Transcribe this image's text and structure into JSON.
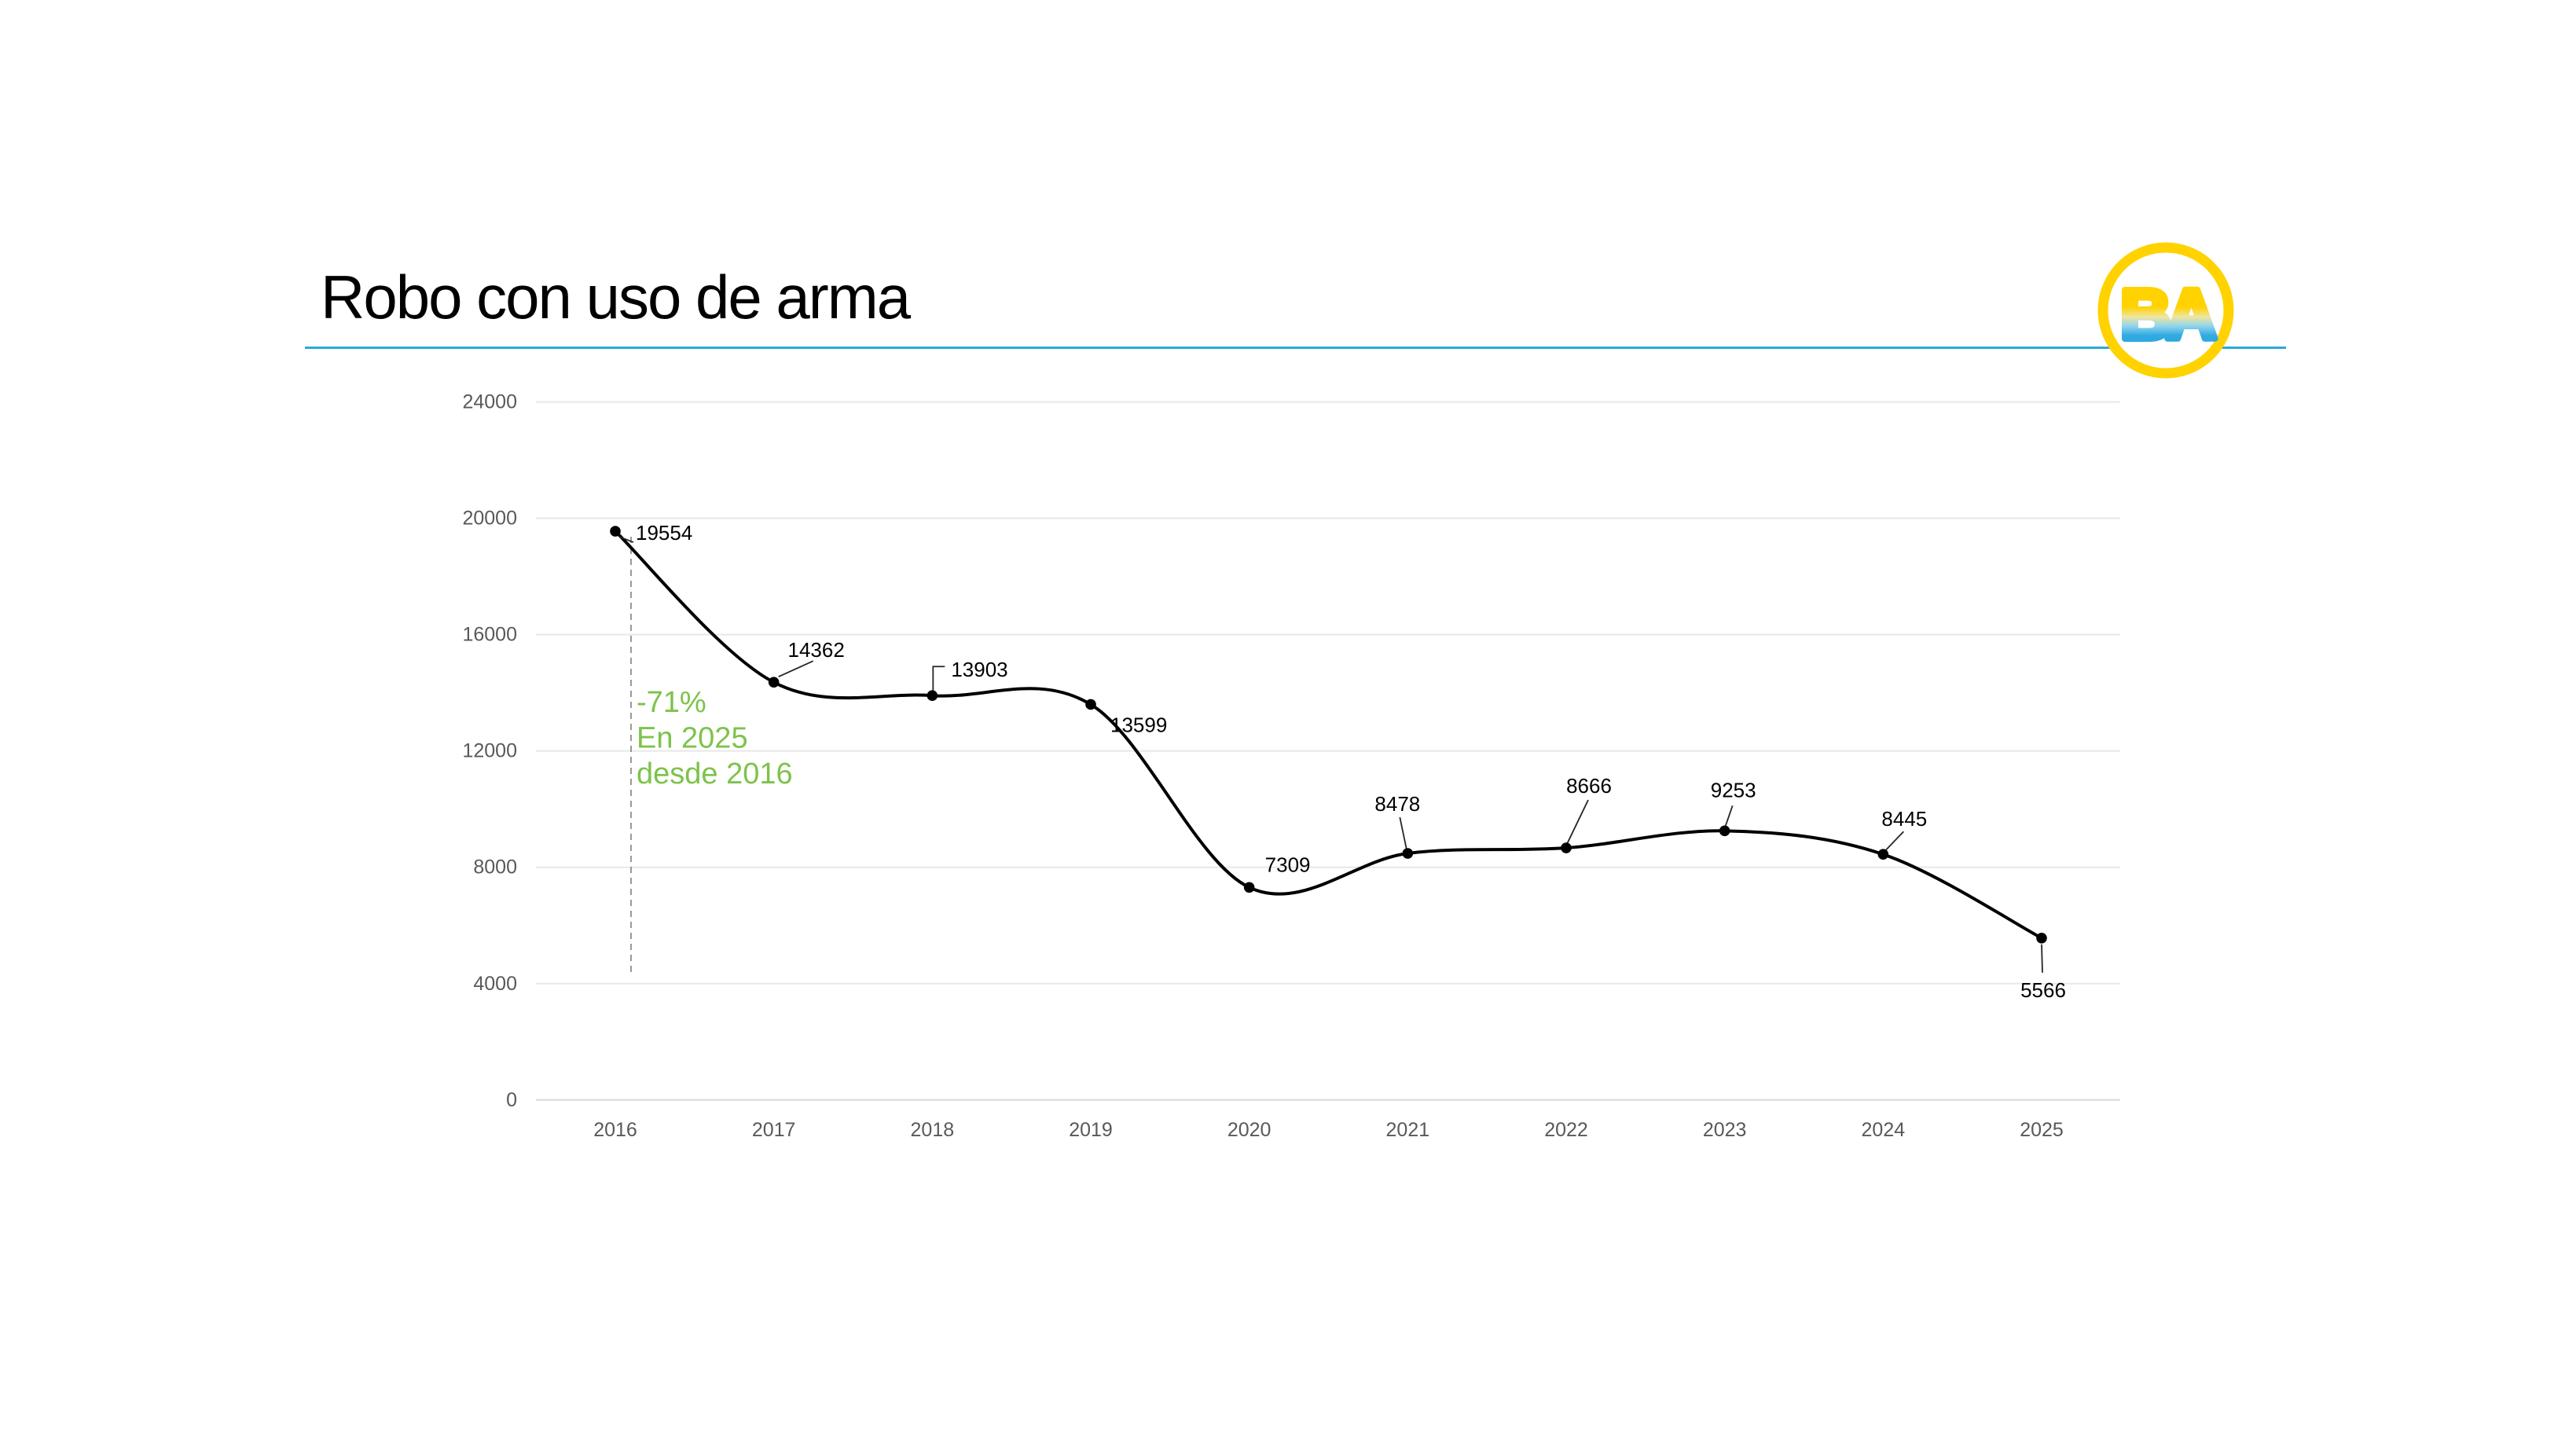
{
  "header": {
    "title": "Robo con uso de arma",
    "logo_text": "BA"
  },
  "colors": {
    "divider": "#29A9DD",
    "annotation_green": "#7DC34B",
    "logo_ring_yellow": "#FFD200",
    "logo_gradient_top": "#FFD200",
    "logo_gradient_bottom": "#29A8E0",
    "series_line": "#000000",
    "data_label": "#000000",
    "axis_text": "#595959",
    "gridline": "#E8E8E8",
    "baseline": "#D8D8D8",
    "reference_line": "#808080"
  },
  "chart_data": {
    "type": "line",
    "title": "Robo con uso de arma",
    "categories": [
      2016,
      2017,
      2018,
      2019,
      2020,
      2021,
      2022,
      2023,
      2024,
      2025
    ],
    "values": [
      19554,
      14362,
      13903,
      13599,
      7309,
      8478,
      8666,
      9253,
      8445,
      5566
    ],
    "series_name": "Robo con uso de arma",
    "xlabel": "",
    "ylabel": "",
    "ylim": [
      0,
      24000
    ],
    "yticks": [
      0,
      4000,
      8000,
      12000,
      16000,
      20000,
      24000
    ],
    "grid": "horizontal",
    "legend": "none",
    "smooth": true,
    "marker": "circle",
    "data_labels_visible": true,
    "annotation": {
      "lines": [
        "-71%",
        "En 2025",
        "desde 2016"
      ],
      "anchor_year": 2016,
      "reference_line": "dashed-vertical"
    }
  }
}
